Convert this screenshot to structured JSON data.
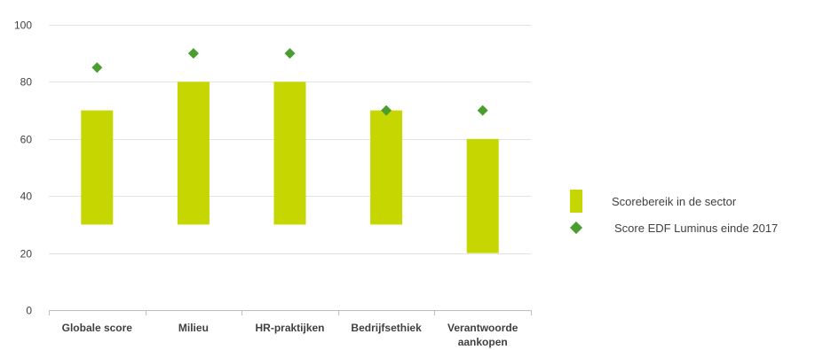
{
  "chart_data": {
    "type": "bar",
    "categories": [
      "Globale score",
      "Milieu",
      "HR-praktijken",
      "Bedrijfsethiek",
      [
        "Verantwoorde",
        "aankopen"
      ]
    ],
    "series": [
      {
        "name": "Scorebereik in de sector",
        "kind": "floating-range",
        "low": [
          30,
          30,
          30,
          30,
          20
        ],
        "high": [
          70,
          80,
          80,
          70,
          60
        ],
        "color": "#c6d600"
      },
      {
        "name": "Score EDF Luminus  einde 2017",
        "kind": "marker-diamond",
        "values": [
          85,
          90,
          90,
          70,
          70
        ],
        "color": "#4a9e2f"
      }
    ],
    "yticks": [
      0,
      20,
      40,
      60,
      80,
      100
    ],
    "ylim": [
      0,
      100
    ],
    "grid": true,
    "legend_position": "right"
  }
}
